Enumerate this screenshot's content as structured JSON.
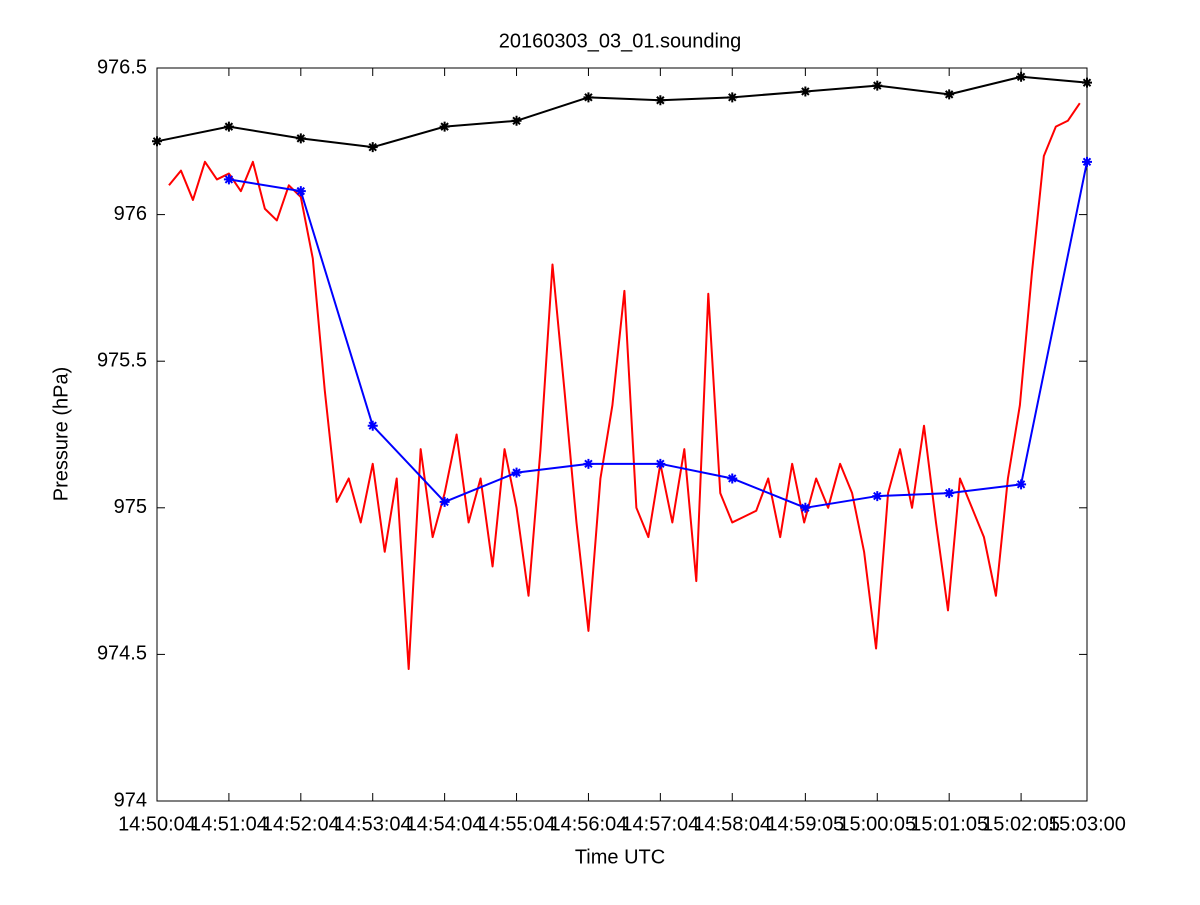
{
  "chart_data": {
    "type": "line",
    "title": "20160303_03_01.sounding",
    "x_label": "Time UTC",
    "y_label": "Pressure (hPa)",
    "xlim": [
      "14:50:04",
      "15:03:00"
    ],
    "xticks": [
      "14:50:04",
      "14:51:04",
      "14:52:04",
      "14:53:04",
      "14:54:04",
      "14:55:04",
      "14:56:04",
      "14:57:04",
      "14:58:04",
      "14:59:05",
      "15:00:05",
      "15:01:05",
      "15:02:05",
      "15:03:00"
    ],
    "ylim": [
      974,
      976.5
    ],
    "yticks": [
      974,
      974.5,
      975,
      975.5,
      976,
      976.5
    ],
    "series": [
      {
        "color": "#ff0000",
        "marker": null,
        "x": [
          "14:50:14",
          "14:50:24",
          "14:50:34",
          "14:50:44",
          "14:50:54",
          "14:51:04",
          "14:51:14",
          "14:51:24",
          "14:51:34",
          "14:51:44",
          "14:51:54",
          "14:52:04",
          "14:52:14",
          "14:52:24",
          "14:52:34",
          "14:52:44",
          "14:52:54",
          "14:53:04",
          "14:53:14",
          "14:53:24",
          "14:53:34",
          "14:53:44",
          "14:53:54",
          "14:54:04",
          "14:54:14",
          "14:54:24",
          "14:54:34",
          "14:54:44",
          "14:54:54",
          "14:55:04",
          "14:55:14",
          "14:55:24",
          "14:55:34",
          "14:55:44",
          "14:55:54",
          "14:56:04",
          "14:56:14",
          "14:56:24",
          "14:56:34",
          "14:56:44",
          "14:56:54",
          "14:57:04",
          "14:57:14",
          "14:57:24",
          "14:57:34",
          "14:57:44",
          "14:57:54",
          "14:58:04",
          "14:58:14",
          "14:58:24",
          "14:58:34",
          "14:58:44",
          "14:58:54",
          "14:59:04",
          "14:59:14",
          "14:59:24",
          "14:59:34",
          "14:59:44",
          "14:59:54",
          "15:00:04",
          "15:00:14",
          "15:00:24",
          "15:00:34",
          "15:00:44",
          "15:00:54",
          "15:01:04",
          "15:01:14",
          "15:01:24",
          "15:01:34",
          "15:01:44",
          "15:01:54",
          "15:02:04",
          "15:02:14",
          "15:02:24",
          "15:02:34",
          "15:02:44",
          "15:02:54"
        ],
        "values": [
          976.1,
          976.15,
          976.05,
          976.18,
          976.12,
          976.14,
          976.08,
          976.18,
          976.02,
          975.98,
          976.1,
          976.06,
          975.85,
          975.4,
          975.02,
          975.1,
          974.95,
          975.15,
          974.85,
          975.1,
          974.45,
          975.2,
          974.9,
          975.05,
          975.25,
          974.95,
          975.1,
          974.8,
          975.2,
          975.0,
          974.7,
          975.2,
          975.83,
          975.4,
          974.95,
          974.58,
          975.1,
          975.35,
          975.74,
          975.0,
          974.9,
          975.15,
          974.95,
          975.2,
          974.75,
          975.73,
          975.05,
          974.95,
          974.97,
          974.99,
          975.1,
          974.9,
          975.15,
          974.95,
          975.1,
          975.0,
          975.15,
          975.05,
          974.85,
          974.52,
          975.05,
          975.2,
          975.0,
          975.28,
          974.95,
          974.65,
          975.1,
          975.0,
          974.9,
          974.7,
          975.1,
          975.35,
          975.8,
          976.2,
          976.3,
          976.32,
          976.38
        ]
      },
      {
        "color": "#0000ff",
        "marker": "*",
        "x": [
          "14:51:04",
          "14:52:04",
          "14:53:04",
          "14:54:04",
          "14:55:04",
          "14:56:04",
          "14:57:04",
          "14:58:04",
          "14:59:05",
          "15:00:05",
          "15:01:05",
          "15:02:05",
          "15:03:00"
        ],
        "values": [
          976.12,
          976.08,
          975.28,
          975.02,
          975.12,
          975.15,
          975.15,
          975.1,
          975.0,
          975.04,
          975.05,
          975.08,
          976.18
        ]
      },
      {
        "color": "#000000",
        "marker": "*",
        "x": [
          "14:50:04",
          "14:51:04",
          "14:52:04",
          "14:53:04",
          "14:54:04",
          "14:55:04",
          "14:56:04",
          "14:57:04",
          "14:58:04",
          "14:59:05",
          "15:00:05",
          "15:01:05",
          "15:02:05",
          "15:03:00"
        ],
        "values": [
          976.25,
          976.3,
          976.26,
          976.23,
          976.3,
          976.32,
          976.4,
          976.39,
          976.4,
          976.42,
          976.44,
          976.41,
          976.47,
          976.45
        ]
      }
    ]
  }
}
